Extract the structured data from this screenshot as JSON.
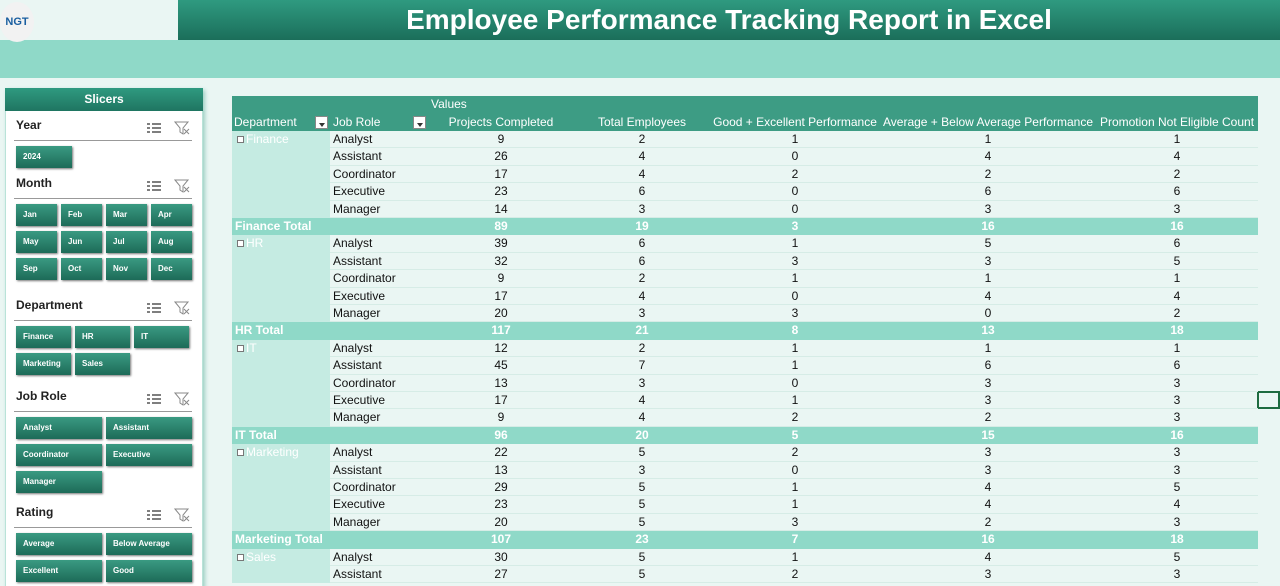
{
  "header": {
    "logo": "NGT",
    "title": "Employee Performance Tracking Report in Excel"
  },
  "slicers": {
    "title": "Slicers",
    "groups": [
      {
        "name": "Year",
        "items": [
          "2024"
        ]
      },
      {
        "name": "Month",
        "items": [
          "Jan",
          "Feb",
          "Mar",
          "Apr",
          "May",
          "Jun",
          "Jul",
          "Aug",
          "Sep",
          "Oct",
          "Nov",
          "Dec"
        ]
      },
      {
        "name": "Department",
        "items": [
          "Finance",
          "HR",
          "IT",
          "Marketing",
          "Sales"
        ]
      },
      {
        "name": "Job Role",
        "items": [
          "Analyst",
          "Assistant",
          "Coordinator",
          "Executive",
          "Manager"
        ]
      },
      {
        "name": "Rating",
        "items": [
          "Average",
          "Below Average",
          "Excellent",
          "Good"
        ]
      }
    ]
  },
  "table": {
    "values_label": "Values",
    "columns": [
      "Department",
      "Job Role",
      "Projects Completed",
      "Total Employees",
      "Good + Excellent Performance",
      "Average + Below Average Performance",
      "Promotion Not Eligible Count"
    ],
    "groups": [
      {
        "department": "Finance",
        "rows": [
          [
            "Analyst",
            9,
            2,
            1,
            1,
            1
          ],
          [
            "Assistant",
            26,
            4,
            0,
            4,
            4
          ],
          [
            "Coordinator",
            17,
            4,
            2,
            2,
            2
          ],
          [
            "Executive",
            23,
            6,
            0,
            6,
            6
          ],
          [
            "Manager",
            14,
            3,
            0,
            3,
            3
          ]
        ],
        "total_label": "Finance Total",
        "total": [
          89,
          19,
          3,
          16,
          16
        ]
      },
      {
        "department": "HR",
        "rows": [
          [
            "Analyst",
            39,
            6,
            1,
            5,
            6
          ],
          [
            "Assistant",
            32,
            6,
            3,
            3,
            5
          ],
          [
            "Coordinator",
            9,
            2,
            1,
            1,
            1
          ],
          [
            "Executive",
            17,
            4,
            0,
            4,
            4
          ],
          [
            "Manager",
            20,
            3,
            3,
            0,
            2
          ]
        ],
        "total_label": "HR Total",
        "total": [
          117,
          21,
          8,
          13,
          18
        ]
      },
      {
        "department": "IT",
        "rows": [
          [
            "Analyst",
            12,
            2,
            1,
            1,
            1
          ],
          [
            "Assistant",
            45,
            7,
            1,
            6,
            6
          ],
          [
            "Coordinator",
            13,
            3,
            0,
            3,
            3
          ],
          [
            "Executive",
            17,
            4,
            1,
            3,
            3
          ],
          [
            "Manager",
            9,
            4,
            2,
            2,
            3
          ]
        ],
        "total_label": "IT Total",
        "total": [
          96,
          20,
          5,
          15,
          16
        ]
      },
      {
        "department": "Marketing",
        "rows": [
          [
            "Analyst",
            22,
            5,
            2,
            3,
            3
          ],
          [
            "Assistant",
            13,
            3,
            0,
            3,
            3
          ],
          [
            "Coordinator",
            29,
            5,
            1,
            4,
            5
          ],
          [
            "Executive",
            23,
            5,
            1,
            4,
            4
          ],
          [
            "Manager",
            20,
            5,
            3,
            2,
            3
          ]
        ],
        "total_label": "Marketing Total",
        "total": [
          107,
          23,
          7,
          16,
          18
        ]
      },
      {
        "department": "Sales",
        "rows": [
          [
            "Analyst",
            30,
            5,
            1,
            4,
            5
          ],
          [
            "Assistant",
            27,
            5,
            2,
            3,
            3
          ]
        ]
      }
    ]
  }
}
